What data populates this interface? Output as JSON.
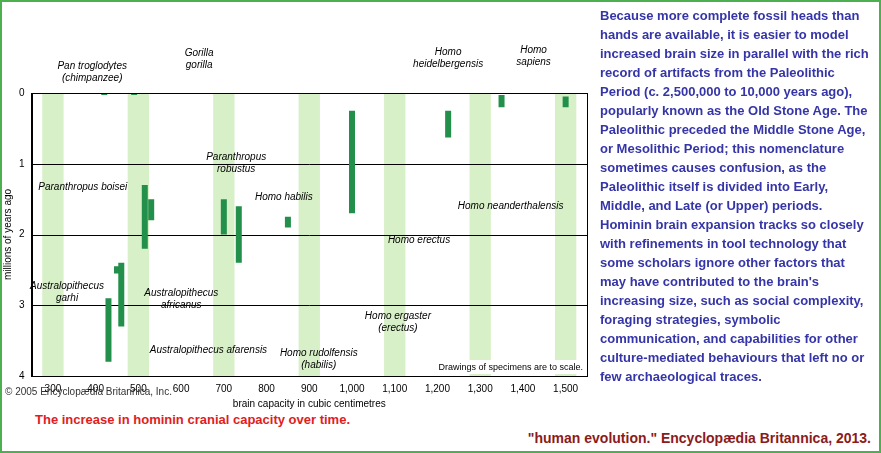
{
  "chart_data": {
    "type": "floating_bar",
    "title": "The increase in hominin cranial capacity over time.",
    "x_label": "brain capacity in cubic centimetres",
    "y_label": "millions of years ago",
    "xlim": [
      250,
      1550
    ],
    "xticks": [
      300,
      400,
      500,
      600,
      700,
      800,
      900,
      {
        "value": 1000,
        "label": "1,000"
      },
      {
        "value": 1100,
        "label": "1,100"
      },
      {
        "value": 1200,
        "label": "1,200"
      },
      {
        "value": 1300,
        "label": "1,300"
      },
      {
        "value": 1400,
        "label": "1,400"
      },
      {
        "value": 1500,
        "label": "1,500"
      }
    ],
    "ylim": [
      0,
      4
    ],
    "yticks": [
      0,
      1,
      2,
      3,
      4
    ],
    "grid": true,
    "color": "#22904a",
    "series": [
      {
        "name": "Pan troglodytes (chimpanzee)",
        "x": 420,
        "values": [
          0,
          0.03
        ]
      },
      {
        "name": "Gorilla gorilla",
        "x": 490,
        "values": [
          0,
          0.03
        ]
      },
      {
        "name": "Homo heidelbergensis",
        "x": 1225,
        "values": [
          0.25,
          0.63
        ]
      },
      {
        "name": "Homo sapiens",
        "x": 1350,
        "values": [
          0.03,
          0.2
        ]
      },
      {
        "name": "Homo neanderthalensis",
        "x": 1500,
        "values": [
          0.05,
          0.2
        ]
      },
      {
        "name": "Homo erectus",
        "x": 1000,
        "values": [
          0.25,
          1.7
        ]
      },
      {
        "name": "Homo ergaster (erectus)",
        "x": 850,
        "values": [
          1.75,
          1.9
        ]
      },
      {
        "name": "Homo habilis",
        "x": 700,
        "values": [
          1.5,
          2.0
        ]
      },
      {
        "name": "Homo rudolfensis (habilis)",
        "x": 735,
        "values": [
          1.6,
          2.4
        ]
      },
      {
        "name": "Paranthropus robustus",
        "x": 530,
        "values": [
          1.5,
          1.8
        ]
      },
      {
        "name": "Paranthropus boisei",
        "x": 515,
        "values": [
          1.3,
          2.2
        ]
      },
      {
        "name": "Australopithecus africanus",
        "x": 460,
        "values": [
          2.4,
          3.3
        ]
      },
      {
        "name": "Australopithecus garhi",
        "x": 450,
        "values": [
          2.45,
          2.55
        ]
      },
      {
        "name": "Australopithecus afarensis",
        "x": 430,
        "values": [
          2.9,
          3.8
        ]
      }
    ],
    "annotations": [
      "Drawings of specimens are to scale.",
      "© 2005 Encyclopædia Britannica, Inc."
    ],
    "text": "Because more complete fossil heads than hands are available, it is easier to model increased brain size in parallel with the rich record of artifacts from the Paleolithic Period (c. 2,500,000 to 10,000 years ago), popularly known as the Old Stone Age. The Paleolithic preceded the Middle Stone Age, or Mesolithic Period; this nomenclature sometimes causes confusion, as the Paleolithic itself is divided into Early, Middle, and Late (or Upper) periods. Hominin brain expansion tracks so closely with refinements in tool technology that some scholars ignore other factors that may have contributed to the brain's increasing size, such as social complexity, foraging strategies, symbolic communication, and capabilities for other culture-mediated behaviours that left no or few archaeological traces.",
    "source": "\"human evolution.\" Encyclopædia Britannica, 2013."
  }
}
